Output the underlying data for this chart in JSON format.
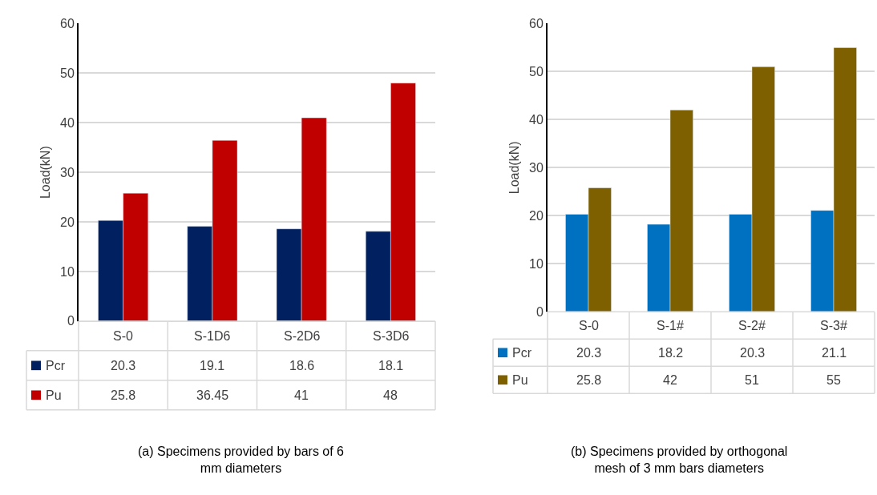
{
  "chart_data": [
    {
      "type": "bar",
      "title": "(a) Specimens provided by bars of 6 mm diameters",
      "ylabel": "Load(kN)",
      "categories": [
        "S-0",
        "S-1D6",
        "S-2D6",
        "S-3D6"
      ],
      "series": [
        {
          "name": "Pcr",
          "color": "#002060",
          "values": [
            20.3,
            19.1,
            18.6,
            18.1
          ]
        },
        {
          "name": "Pu",
          "color": "#c00000",
          "values": [
            25.8,
            36.45,
            41,
            48
          ]
        }
      ],
      "ylim": [
        0,
        60
      ],
      "yticks": [
        0,
        10,
        20,
        30,
        40,
        50,
        60
      ],
      "grid": "y",
      "legend": "bottom",
      "data_labels": true
    },
    {
      "type": "bar",
      "title": "(b) Specimens provided by orthogonal mesh of 3 mm bars diameters",
      "ylabel": "Load(kN)",
      "categories": [
        "S-0",
        "S-1#",
        "S-2#",
        "S-3#"
      ],
      "series": [
        {
          "name": "Pcr",
          "color": "#0070c0",
          "values": [
            20.3,
            18.2,
            20.3,
            21.1
          ]
        },
        {
          "name": "Pu",
          "color": "#7f6000",
          "values": [
            25.8,
            42,
            51,
            55
          ]
        }
      ],
      "ylim": [
        0,
        60
      ],
      "yticks": [
        0,
        10,
        20,
        30,
        40,
        50,
        60
      ],
      "grid": "y",
      "legend": "bottom",
      "data_labels": true
    }
  ]
}
